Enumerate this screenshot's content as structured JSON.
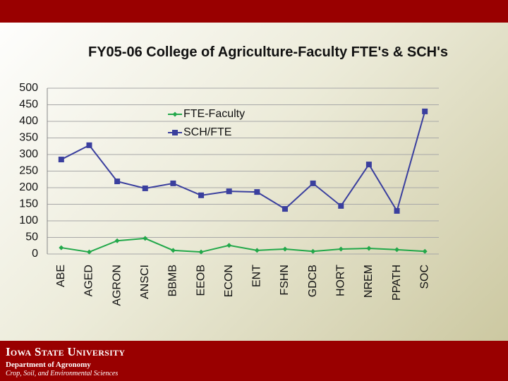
{
  "chart_data": {
    "type": "line",
    "title": "FY05-06 College of Agriculture-Faculty FTE's & SCH's",
    "categories": [
      "ABE",
      "AGED",
      "AGRON",
      "ANSCI",
      "BBMB",
      "EEOB",
      "ECON",
      "ENT",
      "FSHN",
      "GDCB",
      "HORT",
      "NREM",
      "PPATH",
      "SOC"
    ],
    "series": [
      {
        "name": "FTE-Faculty",
        "color": "#22a84a",
        "marker": "diamond",
        "values": [
          19,
          6,
          40,
          47,
          11,
          6,
          26,
          11,
          15,
          8,
          15,
          17,
          13,
          8
        ]
      },
      {
        "name": "SCH/FTE",
        "color": "#3a3f9e",
        "marker": "square",
        "values": [
          285,
          328,
          219,
          198,
          213,
          177,
          189,
          187,
          136,
          213,
          145,
          270,
          130,
          430
        ]
      }
    ],
    "ylim": [
      0,
      500
    ],
    "yticks": [
      0,
      50,
      100,
      150,
      200,
      250,
      300,
      350,
      400,
      450,
      500
    ],
    "grid": true,
    "legend": "top-left"
  },
  "footer": {
    "university": "Iowa State University",
    "department": "Department of Agronomy",
    "subtitle": "Crop, Soil, and Environmental Sciences"
  }
}
